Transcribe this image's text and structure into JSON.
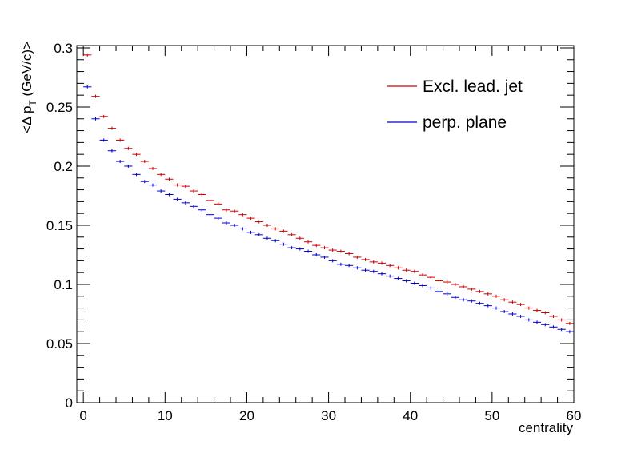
{
  "chart_data": {
    "type": "scatter",
    "title": "",
    "xlabel": "centrality",
    "ylabel": "<Δ p_T (GeV/c)>",
    "ylabel_parts": {
      "before": "<Δ p",
      "subscript": "T",
      "after": " (GeV/c)>"
    },
    "xlim": [
      -0.8,
      60
    ],
    "ylim": [
      0,
      0.302
    ],
    "x_ticks": [
      0,
      10,
      20,
      30,
      40,
      50,
      60
    ],
    "x_tick_labels": [
      "0",
      "10",
      "20",
      "30",
      "40",
      "50",
      "60"
    ],
    "y_ticks": [
      0,
      0.05,
      0.1,
      0.15,
      0.2,
      0.25,
      0.3
    ],
    "y_tick_labels": [
      "0",
      "0.05",
      "0.1",
      "0.15",
      "0.2",
      "0.25",
      "0.3"
    ],
    "grid": false,
    "legend_position": "top-right",
    "bin_width": 1,
    "x": [
      0.5,
      1.5,
      2.5,
      3.5,
      4.5,
      5.5,
      6.5,
      7.5,
      8.5,
      9.5,
      10.5,
      11.5,
      12.5,
      13.5,
      14.5,
      15.5,
      16.5,
      17.5,
      18.5,
      19.5,
      20.5,
      21.5,
      22.5,
      23.5,
      24.5,
      25.5,
      26.5,
      27.5,
      28.5,
      29.5,
      30.5,
      31.5,
      32.5,
      33.5,
      34.5,
      35.5,
      36.5,
      37.5,
      38.5,
      39.5,
      40.5,
      41.5,
      42.5,
      43.5,
      44.5,
      45.5,
      46.5,
      47.5,
      48.5,
      49.5,
      50.5,
      51.5,
      52.5,
      53.5,
      54.5,
      55.5,
      56.5,
      57.5,
      58.5,
      59.5
    ],
    "series": [
      {
        "name": "Excl. lead. jet",
        "color": "#cc0000",
        "values": [
          0.294,
          0.259,
          0.242,
          0.232,
          0.222,
          0.215,
          0.21,
          0.204,
          0.198,
          0.193,
          0.189,
          0.184,
          0.183,
          0.179,
          0.176,
          0.171,
          0.168,
          0.163,
          0.162,
          0.159,
          0.156,
          0.153,
          0.15,
          0.147,
          0.145,
          0.142,
          0.139,
          0.136,
          0.133,
          0.131,
          0.129,
          0.128,
          0.126,
          0.123,
          0.121,
          0.119,
          0.118,
          0.116,
          0.114,
          0.112,
          0.111,
          0.108,
          0.106,
          0.103,
          0.102,
          0.1,
          0.098,
          0.096,
          0.094,
          0.092,
          0.09,
          0.087,
          0.085,
          0.083,
          0.08,
          0.078,
          0.076,
          0.073,
          0.07,
          0.067
        ]
      },
      {
        "name": "perp. plane",
        "color": "#0000cc",
        "values": [
          0.267,
          0.24,
          0.222,
          0.213,
          0.204,
          0.2,
          0.193,
          0.187,
          0.184,
          0.179,
          0.176,
          0.172,
          0.169,
          0.166,
          0.163,
          0.159,
          0.156,
          0.152,
          0.15,
          0.147,
          0.144,
          0.142,
          0.139,
          0.137,
          0.134,
          0.131,
          0.13,
          0.128,
          0.125,
          0.123,
          0.12,
          0.117,
          0.116,
          0.114,
          0.112,
          0.111,
          0.109,
          0.107,
          0.105,
          0.103,
          0.101,
          0.099,
          0.097,
          0.094,
          0.092,
          0.089,
          0.087,
          0.086,
          0.084,
          0.082,
          0.08,
          0.077,
          0.075,
          0.073,
          0.07,
          0.068,
          0.066,
          0.064,
          0.062,
          0.06
        ]
      }
    ]
  }
}
